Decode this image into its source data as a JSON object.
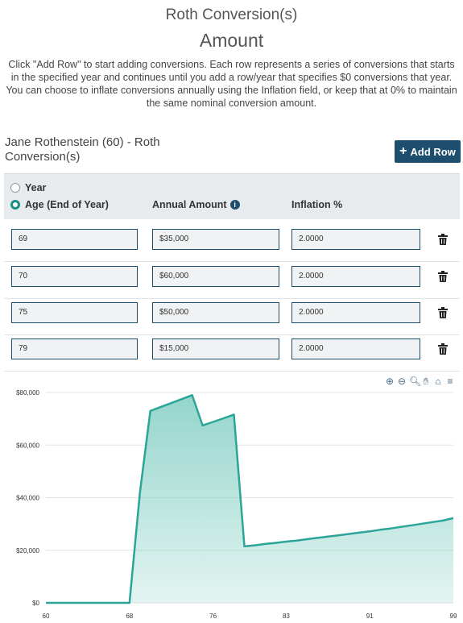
{
  "header": {
    "title": "Roth Conversion(s)",
    "subtitle": "Amount",
    "description": "Click \"Add Row\" to start adding conversions. Each row represents a series of conversions that starts in the specified year and continues until you add a row/year that specifies $0 conversions that year. You can choose to inflate conversions annually using the Inflation field, or keep that at 0% to maintain the same nominal conversion amount."
  },
  "person": {
    "name": "Jane Rothenstein (60) - Roth Conversion(s)",
    "add_row_label": "Add Row"
  },
  "table": {
    "radio_year": "Year",
    "radio_age": "Age (End of Year)",
    "selected": "age",
    "col_amount": "Annual Amount",
    "col_inflation": "Inflation %",
    "rows": [
      {
        "age": "69",
        "amount": "$35,000",
        "inflation": "2.0000"
      },
      {
        "age": "70",
        "amount": "$60,000",
        "inflation": "2.0000"
      },
      {
        "age": "75",
        "amount": "$50,000",
        "inflation": "2.0000"
      },
      {
        "age": "79",
        "amount": "$15,000",
        "inflation": "2.0000"
      }
    ]
  },
  "colors": {
    "accent": "#1d4e6e",
    "series": "#2aa597",
    "fill": "#8fd3c9"
  },
  "toolbar_icons": [
    "zoom-in-icon",
    "zoom-out-icon",
    "magnify-icon",
    "pan-icon",
    "home-icon",
    "menu-icon"
  ],
  "chart_data": {
    "type": "area",
    "x": [
      60,
      61,
      62,
      63,
      64,
      65,
      66,
      67,
      68,
      69,
      70,
      71,
      72,
      73,
      74,
      75,
      76,
      77,
      78,
      79,
      80,
      81,
      82,
      83,
      84,
      85,
      86,
      87,
      88,
      89,
      90,
      91,
      92,
      93,
      94,
      95,
      96,
      97,
      98,
      99
    ],
    "values": [
      0,
      0,
      0,
      0,
      0,
      0,
      0,
      0,
      0,
      42000,
      73000,
      74500,
      76000,
      77500,
      79000,
      67500,
      68800,
      70200,
      71600,
      21500,
      21900,
      22400,
      22800,
      23300,
      23700,
      24200,
      24700,
      25200,
      25700,
      26200,
      26700,
      27200,
      27800,
      28300,
      28900,
      29500,
      30100,
      30700,
      31300,
      32200
    ],
    "xticks": [
      "60",
      "68",
      "76",
      "83",
      "91",
      "99"
    ],
    "yticks": [
      "$0",
      "$20,000",
      "$40,000",
      "$60,000",
      "$80,000"
    ],
    "ylim": [
      0,
      80000
    ],
    "grid": true
  }
}
